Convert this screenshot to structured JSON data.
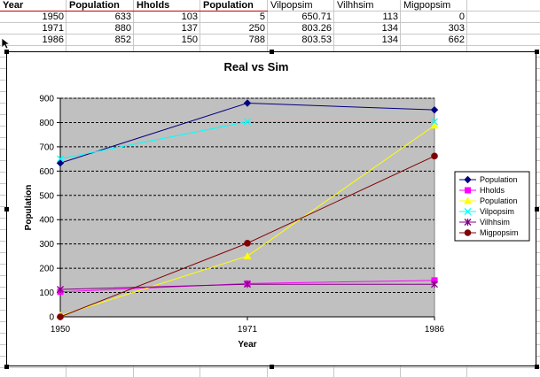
{
  "sheet": {
    "columns": [
      {
        "header": "Year",
        "style": "bold",
        "align": "txt"
      },
      {
        "header": "Population",
        "style": "bold",
        "align": "txt"
      },
      {
        "header": "Hholds",
        "style": "bold",
        "align": "txt"
      },
      {
        "header": "Population",
        "style": "bold",
        "align": "txt"
      },
      {
        "header": "Vilpopsim",
        "style": "plain",
        "align": "txt"
      },
      {
        "header": "Vilhhsim",
        "style": "plain",
        "align": "txt"
      },
      {
        "header": "Migpopsim",
        "style": "plain",
        "align": "txt"
      }
    ],
    "rows": [
      [
        "1950",
        "633",
        "103",
        "5",
        "650.71",
        "113",
        "0"
      ],
      [
        "1971",
        "880",
        "137",
        "250",
        "803.26",
        "134",
        "303"
      ],
      [
        "1986",
        "852",
        "150",
        "788",
        "803.53",
        "134",
        "662"
      ]
    ]
  },
  "chart_data": {
    "type": "line",
    "title": "Real vs Sim",
    "xlabel": "Year",
    "ylabel": "Population",
    "categories": [
      "1950",
      "1971",
      "1986"
    ],
    "ylim": [
      0,
      900
    ],
    "yticks": [
      "0",
      "100",
      "200",
      "300",
      "400",
      "500",
      "600",
      "700",
      "800",
      "900"
    ],
    "grid": true,
    "legend_position": "right",
    "series": [
      {
        "name": "Population",
        "values": [
          633,
          880,
          852
        ],
        "color": "#000080",
        "marker": "diamond"
      },
      {
        "name": "Hholds",
        "values": [
          103,
          137,
          150
        ],
        "color": "#ff00ff",
        "marker": "square"
      },
      {
        "name": "Population",
        "values": [
          5,
          250,
          788
        ],
        "color": "#ffff00",
        "marker": "triangle"
      },
      {
        "name": "Vilpopsim",
        "values": [
          650.71,
          803.26,
          803.53
        ],
        "color": "#00ffff",
        "marker": "x"
      },
      {
        "name": "Vilhhsim",
        "values": [
          113,
          134,
          134
        ],
        "color": "#800080",
        "marker": "star"
      },
      {
        "name": "Migpopsim",
        "values": [
          0,
          303,
          662
        ],
        "color": "#800000",
        "marker": "circle"
      }
    ]
  }
}
